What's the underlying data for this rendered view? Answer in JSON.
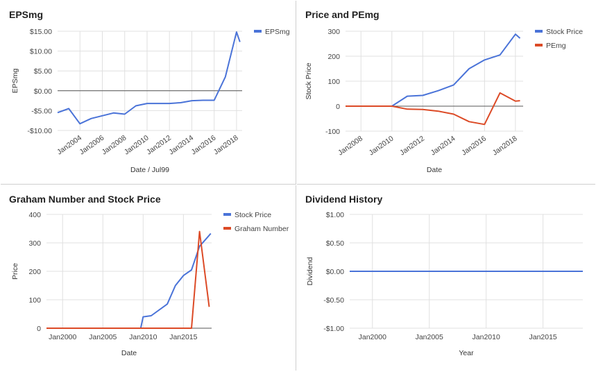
{
  "colors": {
    "blue": "#4a73d8",
    "red": "#dc4a26",
    "grid": "#e0e0e0",
    "zero": "#555555",
    "axis": "#333333",
    "text": "#444444"
  },
  "chart_data": [
    {
      "id": "eps",
      "type": "line",
      "title": "EPSmg",
      "xlabel": "Date / Jul99",
      "ylabel": "EPSmg",
      "xlim": [
        2002,
        2018.5
      ],
      "ylim": [
        -10,
        15
      ],
      "yticks": [
        15,
        10,
        5,
        0,
        -5,
        -10
      ],
      "ytick_labels": [
        "$15.00",
        "$10.00",
        "$5.00",
        "$0.00",
        "-$5.00",
        "-$10.00"
      ],
      "xticks": [
        2004,
        2006,
        2008,
        2010,
        2012,
        2014,
        2016,
        2018
      ],
      "xtick_labels": [
        "Jan2004",
        "Jan2006",
        "Jan2008",
        "Jan2010",
        "Jan2012",
        "Jan2014",
        "Jan2016",
        "Jan2018"
      ],
      "xtick_rotate": true,
      "legend": "right",
      "series": [
        {
          "name": "EPSmg",
          "color": "#4a73d8",
          "x": [
            2002,
            2003,
            2004,
            2005,
            2006,
            2007,
            2008,
            2009,
            2010,
            2011,
            2012,
            2013,
            2014,
            2015,
            2016,
            2017,
            2018,
            2018.3
          ],
          "y": [
            -5.5,
            -4.5,
            -8.3,
            -7.0,
            -6.3,
            -5.6,
            -5.9,
            -3.8,
            -3.2,
            -3.2,
            -3.2,
            -3.0,
            -2.5,
            -2.4,
            -2.4,
            3.5,
            14.8,
            12.3
          ]
        }
      ]
    },
    {
      "id": "price_pe",
      "type": "line",
      "title": "Price and PEmg",
      "xlabel": "Date",
      "ylabel": "Stock Price",
      "xlim": [
        2007,
        2018.5
      ],
      "ylim": [
        -100,
        300
      ],
      "yticks": [
        300,
        200,
        100,
        0,
        -100
      ],
      "ytick_labels": [
        "300",
        "200",
        "100",
        "0",
        "-100"
      ],
      "xticks": [
        2008,
        2010,
        2012,
        2014,
        2016,
        2018
      ],
      "xtick_labels": [
        "Jan2008",
        "Jan2010",
        "Jan2012",
        "Jan2014",
        "Jan2016",
        "Jan2018"
      ],
      "xtick_rotate": true,
      "legend": "right",
      "series": [
        {
          "name": "Stock Price",
          "color": "#4a73d8",
          "x": [
            2007,
            2008,
            2009,
            2010,
            2011,
            2012,
            2013,
            2014,
            2015,
            2016,
            2017,
            2018,
            2018.3
          ],
          "y": [
            0,
            0,
            0,
            0,
            40,
            43,
            62,
            85,
            150,
            185,
            205,
            288,
            272
          ]
        },
        {
          "name": "PEmg",
          "color": "#dc4a26",
          "x": [
            2007,
            2008,
            2009,
            2010,
            2011,
            2012,
            2013,
            2014,
            2015,
            2016,
            2017,
            2018,
            2018.3
          ],
          "y": [
            0,
            0,
            0,
            0,
            -12,
            -13,
            -20,
            -32,
            -62,
            -73,
            53,
            20,
            22
          ]
        }
      ]
    },
    {
      "id": "graham",
      "type": "line",
      "title": "Graham Number and Stock Price",
      "xlabel": "Date",
      "ylabel": "Price",
      "xlim": [
        1998,
        2018.5
      ],
      "ylim": [
        0,
        400
      ],
      "yticks": [
        400,
        300,
        200,
        100,
        0
      ],
      "ytick_labels": [
        "400",
        "300",
        "200",
        "100",
        "0"
      ],
      "xticks": [
        2000,
        2005,
        2010,
        2015
      ],
      "xtick_labels": [
        "Jan2000",
        "Jan2005",
        "Jan2010",
        "Jan2015"
      ],
      "xtick_rotate": false,
      "legend": "right",
      "series": [
        {
          "name": "Stock Price",
          "color": "#4a73d8",
          "x": [
            1998,
            2009.7,
            2010,
            2011,
            2013,
            2014,
            2015,
            2016,
            2017,
            2018,
            2018.4
          ],
          "y": [
            0,
            0,
            40,
            44,
            85,
            150,
            185,
            205,
            288,
            320,
            333
          ]
        },
        {
          "name": "Graham Number",
          "color": "#dc4a26",
          "x": [
            1998,
            2016,
            2017,
            2018.2
          ],
          "y": [
            0,
            0,
            340,
            75
          ]
        }
      ]
    },
    {
      "id": "dividend",
      "type": "line",
      "title": "Dividend History",
      "xlabel": "Year",
      "ylabel": "Dividend",
      "xlim": [
        1998,
        2018.5
      ],
      "ylim": [
        -1,
        1
      ],
      "yticks": [
        1,
        0.5,
        0,
        -0.5,
        -1
      ],
      "ytick_labels": [
        "$1.00",
        "$0.50",
        "$0.00",
        "-$0.50",
        "-$1.00"
      ],
      "xticks": [
        2000,
        2005,
        2010,
        2015
      ],
      "xtick_labels": [
        "Jan2000",
        "Jan2005",
        "Jan2010",
        "Jan2015"
      ],
      "xtick_rotate": false,
      "legend": "none",
      "series": [
        {
          "name": "",
          "color": "#4a73d8",
          "x": [
            1998,
            2018.5
          ],
          "y": [
            0,
            0
          ]
        }
      ]
    }
  ]
}
